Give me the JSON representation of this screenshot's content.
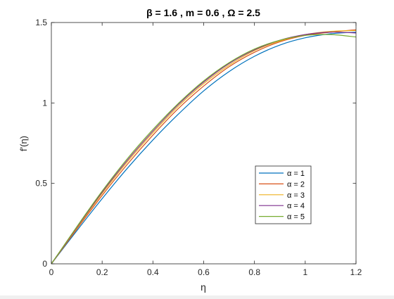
{
  "chart_data": {
    "type": "line",
    "title": "β = 1.6 , m = 0.6 , Ω = 2.5",
    "xlabel": "η",
    "ylabel": "f'(η)",
    "xlim": [
      0,
      1.2
    ],
    "ylim": [
      0,
      1.5
    ],
    "xticks": [
      0,
      0.2,
      0.4,
      0.6,
      0.8,
      1,
      1.2
    ],
    "xtick_labels": [
      "0",
      "0.2",
      "0.4",
      "0.6",
      "0.8",
      "1",
      "1.2"
    ],
    "yticks": [
      0,
      0.5,
      1,
      1.5
    ],
    "ytick_labels": [
      "0",
      "0.5",
      "1",
      "1.5"
    ],
    "grid": false,
    "legend_position": "lower-right",
    "x": [
      0,
      0.1,
      0.2,
      0.3,
      0.4,
      0.5,
      0.6,
      0.7,
      0.8,
      0.9,
      1.0,
      1.1,
      1.2
    ],
    "series": [
      {
        "name": "α = 1",
        "color": "#0072bd",
        "values": [
          0,
          0.205,
          0.405,
          0.595,
          0.77,
          0.93,
          1.075,
          1.195,
          1.29,
          1.36,
          1.405,
          1.43,
          1.44
        ]
      },
      {
        "name": "α = 2",
        "color": "#d95319",
        "values": [
          0,
          0.215,
          0.425,
          0.62,
          0.8,
          0.965,
          1.105,
          1.225,
          1.315,
          1.38,
          1.42,
          1.44,
          1.455
        ]
      },
      {
        "name": "α = 3",
        "color": "#edb120",
        "values": [
          0,
          0.222,
          0.437,
          0.635,
          0.815,
          0.98,
          1.12,
          1.235,
          1.325,
          1.385,
          1.425,
          1.445,
          1.45
        ]
      },
      {
        "name": "α = 4",
        "color": "#7e2f8e",
        "values": [
          0,
          0.226,
          0.445,
          0.645,
          0.825,
          0.99,
          1.13,
          1.245,
          1.33,
          1.39,
          1.425,
          1.44,
          1.435
        ]
      },
      {
        "name": "α = 5",
        "color": "#77ac30",
        "values": [
          0,
          0.23,
          0.452,
          0.655,
          0.835,
          0.997,
          1.137,
          1.25,
          1.335,
          1.39,
          1.42,
          1.425,
          1.41
        ]
      }
    ]
  }
}
